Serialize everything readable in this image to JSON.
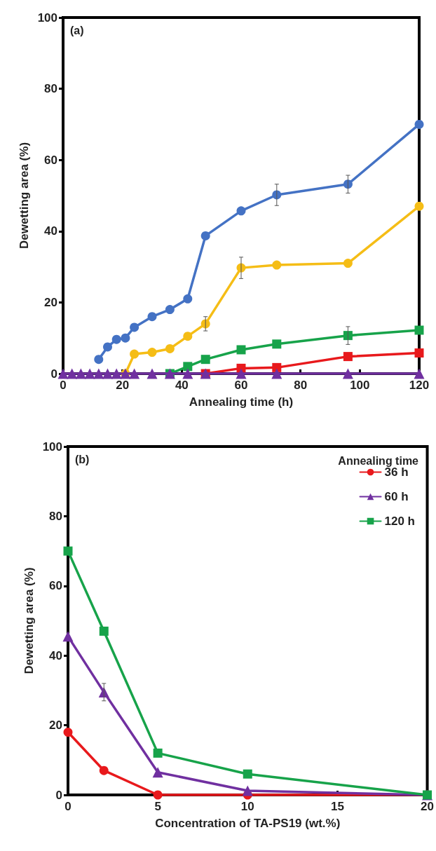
{
  "chart_data": [
    {
      "type": "line",
      "annotations": [
        "(a)"
      ],
      "xlabel": "Annealing time (h)",
      "ylabel": "Dewetting area (%)",
      "x": [
        0,
        3,
        6,
        9,
        12,
        15,
        18,
        21,
        24,
        30,
        36,
        42,
        48,
        60,
        72,
        96,
        120
      ],
      "xlim": [
        0,
        120
      ],
      "xticks": [
        0,
        20,
        40,
        60,
        80,
        100,
        120
      ],
      "ylim": [
        0,
        100
      ],
      "yticks": [
        0,
        20,
        40,
        60,
        80,
        100
      ],
      "grid": false,
      "legend": false,
      "line_style": "solid",
      "series": [
        {
          "color": "#4472c4",
          "marker": "circle",
          "values": [
            null,
            null,
            null,
            null,
            4,
            7.5,
            9.6,
            10,
            13,
            16,
            18,
            21,
            38.7,
            45.7,
            50.2,
            53.2,
            70
          ],
          "errors": [
            null,
            null,
            null,
            null,
            null,
            null,
            null,
            null,
            null,
            null,
            null,
            null,
            null,
            null,
            3,
            2.5,
            null
          ]
        },
        {
          "color": "#f5bd16",
          "marker": "circle",
          "values": [
            null,
            null,
            null,
            null,
            null,
            null,
            null,
            0,
            5.5,
            6,
            7,
            10.5,
            14,
            29.7,
            30.5,
            31,
            47
          ],
          "errors": [
            null,
            null,
            null,
            null,
            null,
            null,
            null,
            null,
            null,
            null,
            null,
            null,
            2,
            3,
            null,
            null,
            null
          ]
        },
        {
          "color": "#17a34a",
          "marker": "square",
          "values": [
            null,
            null,
            null,
            null,
            null,
            null,
            null,
            null,
            null,
            null,
            0,
            2,
            4,
            6.7,
            8.3,
            10.7,
            12.2
          ],
          "errors": [
            null,
            null,
            null,
            null,
            null,
            null,
            null,
            null,
            null,
            null,
            null,
            null,
            null,
            null,
            null,
            2.5,
            null
          ]
        },
        {
          "color": "#e8191c",
          "marker": "square",
          "values": [
            null,
            null,
            null,
            null,
            null,
            null,
            null,
            null,
            null,
            null,
            null,
            null,
            0,
            1.5,
            1.7,
            4.8,
            5.8
          ]
        },
        {
          "color": "#7030a0",
          "marker": "triangle",
          "values": [
            0,
            0,
            0,
            0,
            0,
            0,
            0,
            0,
            0,
            0,
            0,
            0,
            0,
            0,
            0,
            0,
            0
          ]
        }
      ]
    },
    {
      "type": "line",
      "annotations": [
        "(b)"
      ],
      "xlabel": "Concentration of TA-PS19 (wt.%)",
      "ylabel": "Dewetting area (%)",
      "legend_title": "Annealing time",
      "x": [
        0,
        2,
        5,
        10,
        20
      ],
      "xlim": [
        0,
        20
      ],
      "xticks": [
        0,
        5,
        10,
        15,
        20
      ],
      "ylim": [
        0,
        100
      ],
      "yticks": [
        0,
        20,
        40,
        60,
        80,
        100
      ],
      "grid": false,
      "legend": "top right",
      "line_style": "solid",
      "series": [
        {
          "name": "36 h",
          "color": "#e8191c",
          "marker": "circle",
          "values": [
            18,
            7,
            0,
            0,
            0
          ]
        },
        {
          "name": "60 h",
          "color": "#7030a0",
          "marker": "triangle",
          "values": [
            45.5,
            29.5,
            6.5,
            1.2,
            0
          ],
          "errors": [
            null,
            2.5,
            null,
            null,
            null
          ]
        },
        {
          "name": "120 h",
          "color": "#17a34a",
          "marker": "square",
          "values": [
            70,
            47,
            12,
            6,
            0
          ]
        }
      ]
    }
  ]
}
